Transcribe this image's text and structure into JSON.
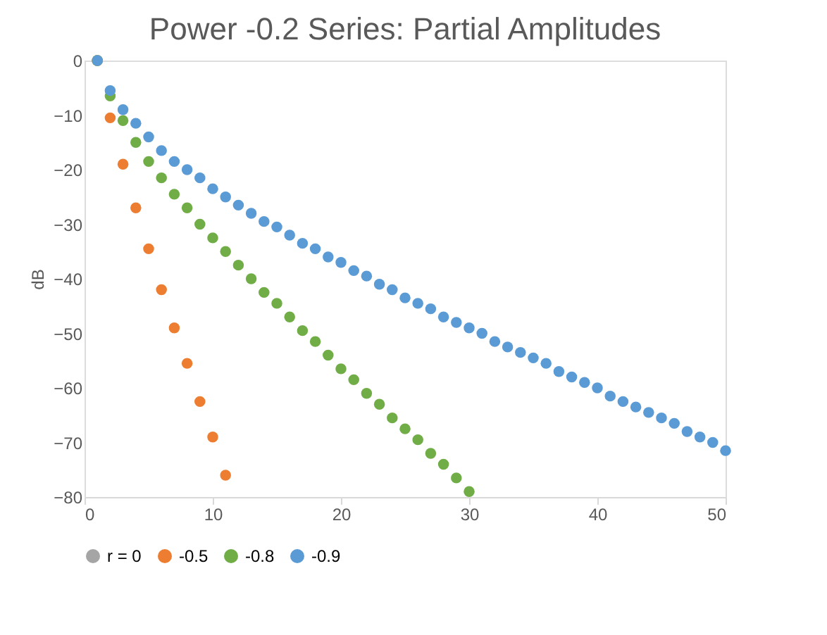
{
  "chart_data": {
    "type": "scatter",
    "title": "Power -0.2 Series: Partial Amplitudes",
    "ylabel": "dB",
    "xlim": [
      0,
      50
    ],
    "xticks": [
      0,
      10,
      20,
      30,
      40,
      50
    ],
    "ylim": [
      -80,
      0
    ],
    "yticks": [
      -80,
      -70,
      -60,
      -50,
      -40,
      -30,
      -20,
      -10,
      0
    ],
    "grid": false,
    "legend": "bottom",
    "marker": "circle",
    "series": [
      {
        "name": "r = 0",
        "color": "#a5a5a5",
        "x": [
          1
        ],
        "values": [
          0
        ]
      },
      {
        "name": "-0.5",
        "color": "#ed7d31",
        "x": [
          1,
          2,
          3,
          4,
          5,
          6,
          7,
          8,
          9,
          10,
          11
        ],
        "values": [
          0,
          -10.5,
          -19,
          -27,
          -34.5,
          -42,
          -49,
          -55.5,
          -62.5,
          -69,
          -76
        ]
      },
      {
        "name": "-0.8",
        "color": "#70ad47",
        "x": [
          1,
          2,
          3,
          4,
          5,
          6,
          7,
          8,
          9,
          10,
          11,
          12,
          13,
          14,
          15,
          16,
          17,
          18,
          19,
          20,
          21,
          22,
          23,
          24,
          25,
          26,
          27,
          28,
          29,
          30
        ],
        "values": [
          0,
          -6.5,
          -11,
          -15,
          -18.5,
          -21.5,
          -24.5,
          -27,
          -30,
          -32.5,
          -35,
          -37.5,
          -40,
          -42.5,
          -44.5,
          -47,
          -49.5,
          -51.5,
          -54,
          -56.5,
          -58.5,
          -61,
          -63,
          -65.5,
          -67.5,
          -69.5,
          -72,
          -74,
          -76.5,
          -79
        ]
      },
      {
        "name": "-0.9",
        "color": "#5b9bd5",
        "x": [
          1,
          2,
          3,
          4,
          5,
          6,
          7,
          8,
          9,
          10,
          11,
          12,
          13,
          14,
          15,
          16,
          17,
          18,
          19,
          20,
          21,
          22,
          23,
          24,
          25,
          26,
          27,
          28,
          29,
          30,
          31,
          32,
          33,
          34,
          35,
          36,
          37,
          38,
          39,
          40,
          41,
          42,
          43,
          44,
          45,
          46,
          47,
          48,
          49,
          50
        ],
        "values": [
          0,
          -5.5,
          -9,
          -11.5,
          -14,
          -16.5,
          -18.5,
          -20,
          -21.5,
          -23.5,
          -25,
          -26.5,
          -28,
          -29.5,
          -30.5,
          -32,
          -33.5,
          -34.5,
          -36,
          -37,
          -38.5,
          -39.5,
          -41,
          -42,
          -43.5,
          -44.5,
          -45.5,
          -47,
          -48,
          -49,
          -50,
          -51.5,
          -52.5,
          -53.5,
          -54.5,
          -55.5,
          -57,
          -58,
          -59,
          -60,
          -61.5,
          -62.5,
          -63.5,
          -64.5,
          -65.5,
          -66.5,
          -68,
          -69,
          -70,
          -71.5
        ]
      }
    ]
  }
}
